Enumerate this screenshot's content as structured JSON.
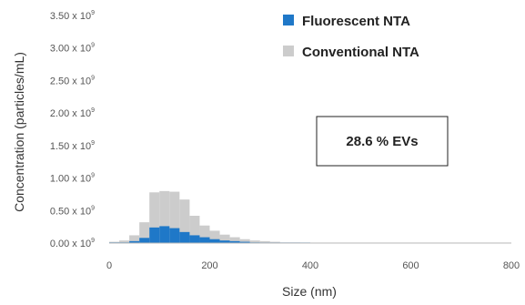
{
  "chart_data": {
    "type": "area",
    "xlabel": "Size (nm)",
    "ylabel": "Concentration  (particles/mL)",
    "xlim": [
      0,
      800
    ],
    "ylim": [
      0,
      3500000000.0
    ],
    "xticks": [
      0,
      200,
      400,
      600,
      800
    ],
    "xtick_labels": [
      "0",
      "200",
      "400",
      "600",
      "800"
    ],
    "yticks": [
      0,
      500000000.0,
      1000000000.0,
      1500000000.0,
      2000000000.0,
      2500000000.0,
      3000000000.0,
      3500000000.0
    ],
    "ytick_labels": [
      "0.00 x 10",
      "0.50 x 10",
      "1.00 x 10",
      "1.50 x 10",
      "2.00 x 10",
      "2.50 x 10",
      "3.00 x 10",
      "3.50 x 10"
    ],
    "ytick_exponent": "9",
    "grid": false,
    "legend_position": "top-right",
    "bin_edges": [
      0,
      20,
      40,
      60,
      80,
      100,
      120,
      140,
      160,
      180,
      200,
      220,
      240,
      260,
      280,
      300,
      320,
      340,
      360,
      380,
      400,
      420,
      440,
      460,
      480,
      500,
      520,
      540,
      560,
      580,
      600,
      620,
      640,
      660,
      680,
      700,
      720,
      740,
      760,
      780,
      800
    ],
    "series": [
      {
        "name": "Conventional NTA",
        "color": "#cccccc",
        "values": [
          20000000.0,
          40000000.0,
          120000000.0,
          320000000.0,
          780000000.0,
          800000000.0,
          790000000.0,
          670000000.0,
          420000000.0,
          270000000.0,
          190000000.0,
          130000000.0,
          90000000.0,
          60000000.0,
          40000000.0,
          30000000.0,
          20000000.0,
          10000000.0,
          10000000.0,
          5000000.0,
          5000000.0,
          3000000.0,
          3000000.0,
          2000000.0,
          2000000.0,
          2000000.0,
          1000000.0,
          1000000.0,
          1000000.0,
          1000000.0,
          1000000.0,
          1000000.0,
          1000000.0,
          1000000.0,
          1000000.0,
          1000000.0,
          1000000.0,
          1000000.0,
          1000000.0,
          1000000.0
        ]
      },
      {
        "name": "Fluorescent NTA",
        "color": "#1f78c8",
        "values": [
          10000000.0,
          10000000.0,
          30000000.0,
          80000000.0,
          240000000.0,
          260000000.0,
          230000000.0,
          170000000.0,
          120000000.0,
          90000000.0,
          60000000.0,
          40000000.0,
          30000000.0,
          20000000.0,
          10000000.0,
          5000000.0,
          3000000.0,
          2000000.0,
          1000000.0,
          1000000.0,
          0,
          0,
          0,
          0,
          0,
          0,
          0,
          0,
          0,
          0,
          0,
          0,
          0,
          0,
          0,
          0,
          0,
          0,
          0,
          0
        ]
      }
    ],
    "legend": [
      {
        "label": "Fluorescent NTA",
        "color": "#1f78c8"
      },
      {
        "label": "Conventional NTA",
        "color": "#cccccc"
      }
    ],
    "annotation": "28.6 % EVs"
  }
}
